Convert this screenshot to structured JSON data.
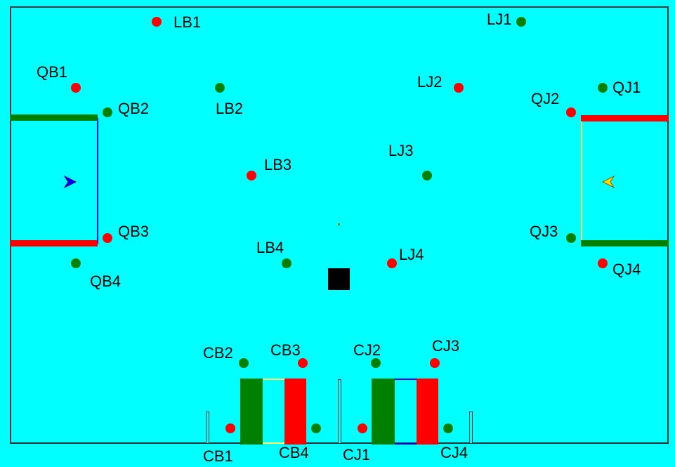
{
  "colors": {
    "background": "#00FFFF",
    "team_b": "#FF0000",
    "team_g": "#008000",
    "blue": "#0000FF",
    "yellow": "#FFFF66",
    "center_box": "#000000"
  },
  "labels": {
    "LB1": "LB1",
    "LB2": "LB2",
    "LB3": "LB3",
    "LB4": "LB4",
    "LJ1": "LJ1",
    "LJ2": "LJ2",
    "LJ3": "LJ3",
    "LJ4": "LJ4",
    "QB1": "QB1",
    "QB2": "QB2",
    "QB3": "QB3",
    "QB4": "QB4",
    "QJ1": "QJ1",
    "QJ2": "QJ2",
    "QJ3": "QJ3",
    "QJ4": "QJ4",
    "CB1": "CB1",
    "CB2": "CB2",
    "CB3": "CB3",
    "CB4": "CB4",
    "CJ1": "CJ1",
    "CJ2": "CJ2",
    "CJ3": "CJ3",
    "CJ4": "CJ4"
  },
  "icons": {
    "left_marker": "blue-arrow-right-icon",
    "right_marker": "yellow-arrow-left-icon"
  }
}
